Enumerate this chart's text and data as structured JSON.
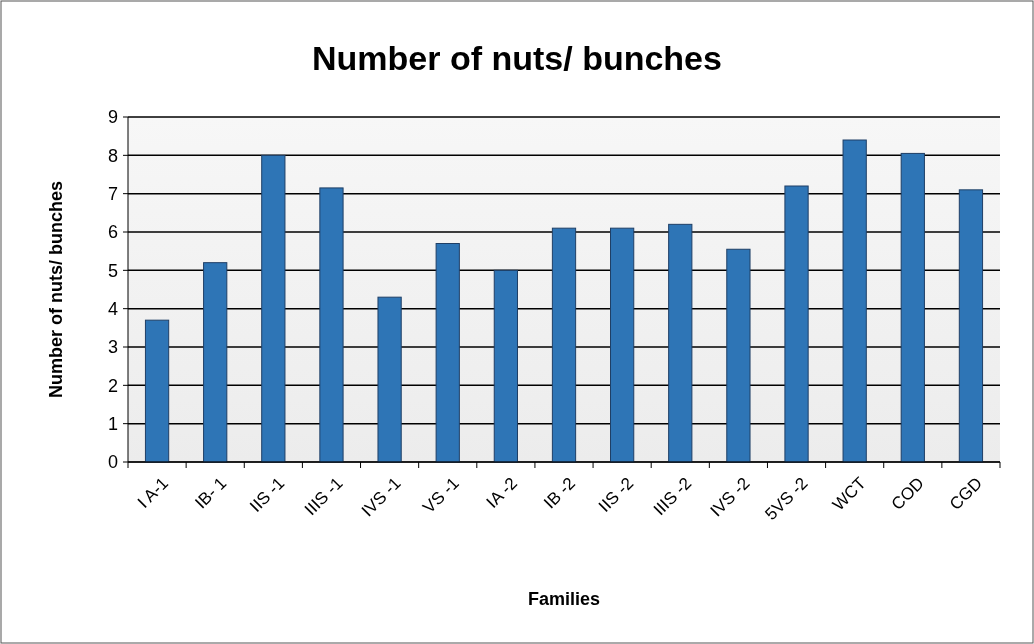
{
  "chart_data": {
    "type": "bar",
    "title": "Number of nuts/ bunches",
    "xlabel": "Families",
    "ylabel": "Number of nuts/ bunches",
    "categories": [
      "I A-1",
      "IB- 1",
      "IIS -1",
      "IIIS -1",
      "IVS -1",
      "VS -1",
      "IA -2",
      "IB -2",
      "IIS -2",
      "IIIS -2",
      "IVS -2",
      "5VS -2",
      "WCT",
      "COD",
      "CGD"
    ],
    "values": [
      3.7,
      5.2,
      8.0,
      7.15,
      4.3,
      5.7,
      5.0,
      6.1,
      6.1,
      6.2,
      5.55,
      7.2,
      8.4,
      8.05,
      7.1
    ],
    "color": "#2e75b6",
    "ylim": [
      0,
      9
    ],
    "yticks": [
      0,
      1,
      2,
      3,
      4,
      5,
      6,
      7,
      8,
      9
    ],
    "grid": "y"
  }
}
